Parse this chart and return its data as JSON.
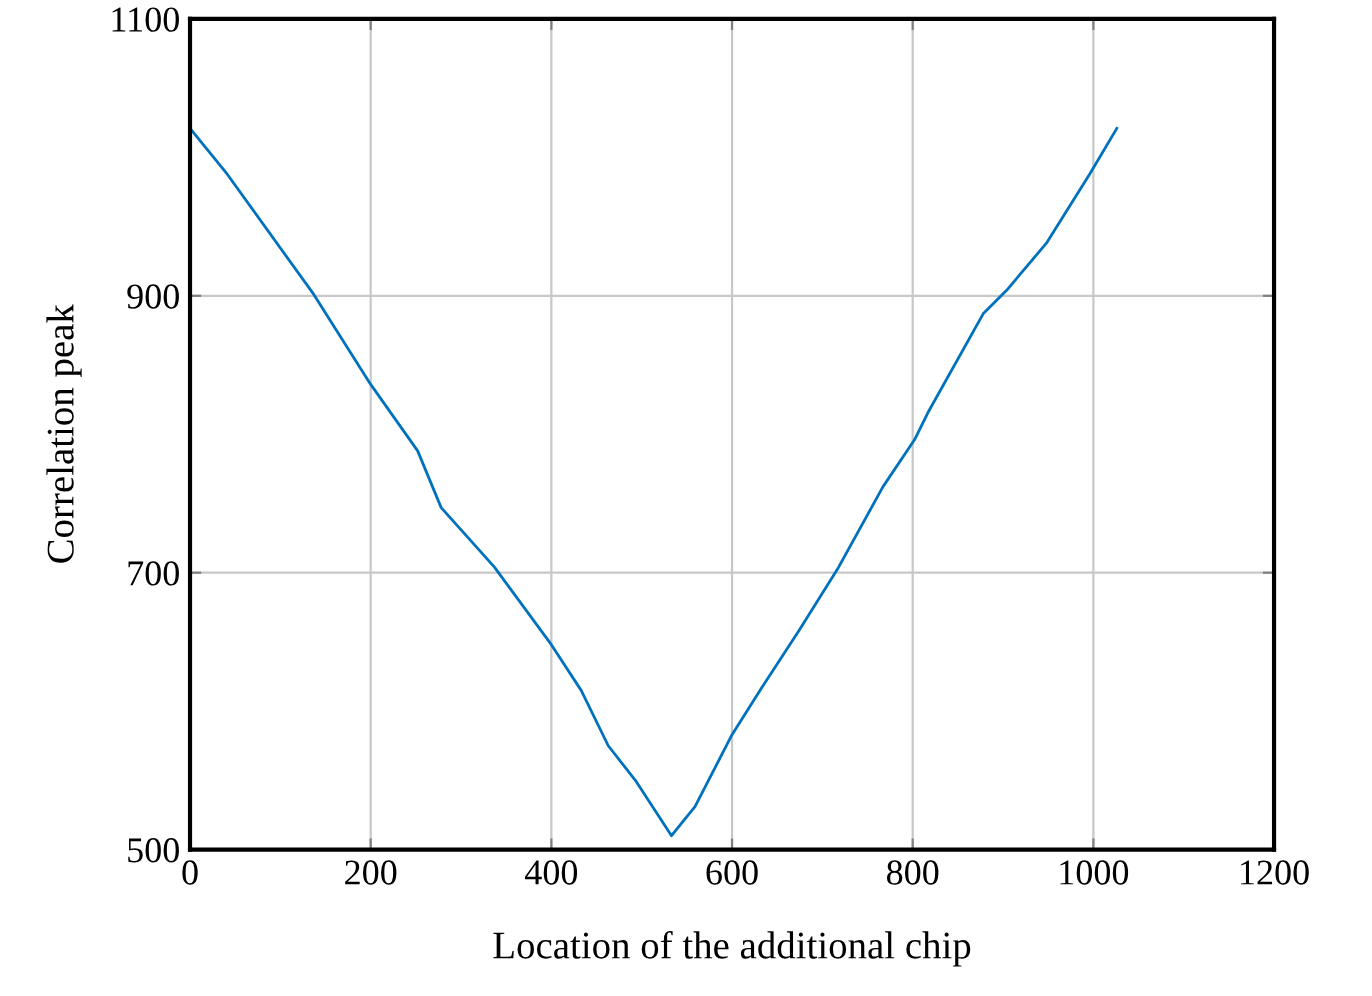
{
  "chart_data": {
    "type": "line",
    "xlabel": "Location of the additional chip",
    "ylabel": "Correlation peak",
    "x": [
      0,
      41,
      137,
      200,
      252,
      278,
      337,
      400,
      433,
      463,
      493,
      533,
      559,
      600,
      633,
      674,
      718,
      767,
      802,
      818,
      878,
      904,
      948,
      996,
      1026
    ],
    "series": [
      {
        "color": "#0072bd",
        "values": [
          1021,
          988,
          901,
          836,
          788,
          747,
          704,
          648,
          615,
          575,
          550,
          510,
          531,
          583,
          617,
          658,
          704,
          762,
          796,
          817,
          887,
          904,
          938,
          988,
          1021
        ]
      }
    ],
    "xlim": [
      0,
      1200
    ],
    "xticks": [
      0,
      200,
      400,
      600,
      800,
      1000,
      1200
    ],
    "ylim": [
      500,
      1100
    ],
    "yticks": [
      500,
      700,
      900,
      1100
    ],
    "grid": true
  }
}
